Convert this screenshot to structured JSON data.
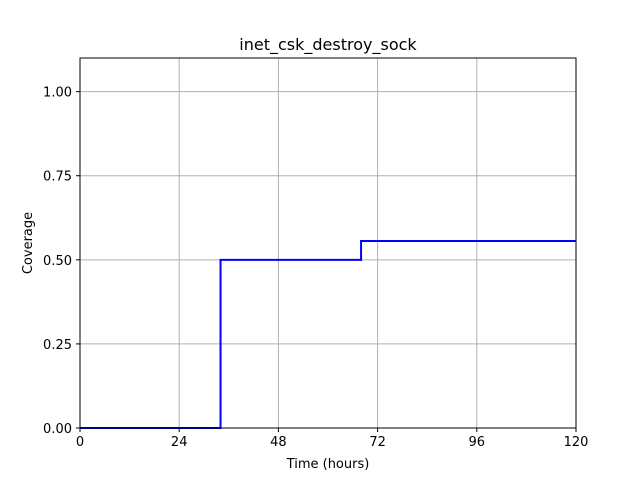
{
  "chart_data": {
    "type": "line",
    "title": "inet_csk_destroy_sock",
    "xlabel": "Time (hours)",
    "ylabel": "Coverage",
    "xlim": [
      0,
      120
    ],
    "ylim": [
      0,
      1.1
    ],
    "xticks": [
      0,
      24,
      48,
      72,
      96,
      120
    ],
    "yticks": [
      0.0,
      0.25,
      0.5,
      0.75,
      1.0
    ],
    "xtick_labels": [
      "0",
      "24",
      "48",
      "72",
      "96",
      "120"
    ],
    "ytick_labels": [
      "0.00",
      "0.25",
      "0.50",
      "0.75",
      "1.00"
    ],
    "grid": true,
    "series": [
      {
        "color": "#0000ff",
        "step": true,
        "x": [
          0,
          34,
          34,
          68,
          68,
          120
        ],
        "y": [
          0,
          0,
          0.5,
          0.5,
          0.556,
          0.556
        ]
      }
    ]
  }
}
